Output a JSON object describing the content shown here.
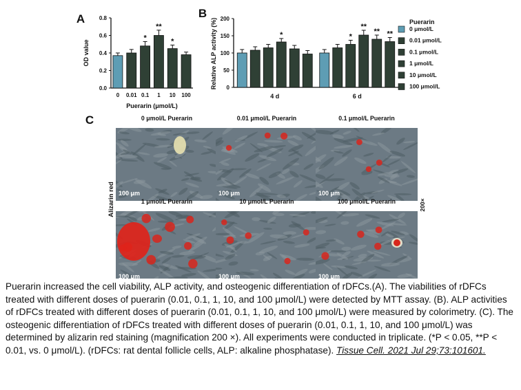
{
  "panels": {
    "a": {
      "letter": "A",
      "chart_data": {
        "type": "bar",
        "categories": [
          "0",
          "0.01",
          "0.1",
          "1",
          "10",
          "100"
        ],
        "values": [
          0.37,
          0.4,
          0.48,
          0.6,
          0.45,
          0.38
        ],
        "errors": [
          0.03,
          0.04,
          0.05,
          0.06,
          0.04,
          0.03
        ],
        "significance": [
          "",
          "",
          "*",
          "**",
          "*",
          ""
        ],
        "xlabel": "Puerarin (μmol/L)",
        "ylabel": "OD value",
        "ylim": [
          0,
          0.8
        ],
        "yticks": [
          "0.0",
          "0.2",
          "0.4",
          "0.6",
          "0.8"
        ],
        "colors": [
          "#5e9db4",
          "#2f4035",
          "#2f4035",
          "#2f4035",
          "#2f4035",
          "#2f4035"
        ]
      }
    },
    "b": {
      "letter": "B",
      "chart_data": {
        "type": "bar",
        "groups": [
          "4 d",
          "6 d"
        ],
        "series": [
          {
            "name": "0 μmol/L",
            "values": [
              100,
              100
            ],
            "errors": [
              10,
              10
            ],
            "sig": [
              "",
              ""
            ]
          },
          {
            "name": "0.01 μmol/L",
            "values": [
              108,
              115
            ],
            "errors": [
              10,
              10
            ],
            "sig": [
              "",
              ""
            ]
          },
          {
            "name": "0.1 μmol/L",
            "values": [
              115,
              125
            ],
            "errors": [
              10,
              12
            ],
            "sig": [
              "",
              "*"
            ]
          },
          {
            "name": "1 μmol/L",
            "values": [
              132,
              152
            ],
            "errors": [
              10,
              14
            ],
            "sig": [
              "*",
              "**"
            ]
          },
          {
            "name": "10 μmol/L",
            "values": [
              112,
              140
            ],
            "errors": [
              10,
              12
            ],
            "sig": [
              "",
              "**"
            ]
          },
          {
            "name": "100 μmol/L",
            "values": [
              97,
              133
            ],
            "errors": [
              10,
              12
            ],
            "sig": [
              "",
              "**"
            ]
          }
        ],
        "ylabel": "Relative ALP activity (%)",
        "ylim": [
          0,
          200
        ],
        "yticks": [
          "0",
          "50",
          "100",
          "150",
          "200"
        ],
        "legend_title": "Puerarin",
        "legend_position": "right",
        "colors": [
          "#5e9db4",
          "#2f4035",
          "#2f4035",
          "#2f4035",
          "#2f4035",
          "#2f4035"
        ]
      }
    },
    "c": {
      "letter": "C",
      "row_label": "Alizarin red",
      "magnification": "200×",
      "scale_bar": "100 μm",
      "images": [
        {
          "title": "0 μmol/L Puerarin",
          "red_level": 0.05
        },
        {
          "title": "0.01 μmol/L Puerarin",
          "red_level": 0.3
        },
        {
          "title": "0.1 μmol/L Puerarin",
          "red_level": 0.35
        },
        {
          "title": "1 μmol/L Puerarin",
          "red_level": 0.9
        },
        {
          "title": "10 μmol/L Puerarin",
          "red_level": 0.6
        },
        {
          "title": "100 μmol/L Puerarin",
          "red_level": 0.45
        }
      ]
    }
  },
  "caption": {
    "text": "Puerarin increased the cell viability, ALP activity, and osteogenic differentiation of rDFCs.(A). The viabilities of rDFCs treated with different doses of puerarin (0.01, 0.1, 1, 10, and 100 μmol/L) were detected by MTT assay. (B). ALP activities of rDFCs treated with different doses of puerarin (0.01, 0.1, 1, 10, and 100 μmol/L) were measured by colorimetry. (C). The osteogenic differentiation of rDFCs treated with different doses of puerarin (0.01, 0.1, 1, 10, and 100 μmol/L) was determined by alizarin red staining (magnification 200 ×). All experiments were conducted in triplicate. (*P < 0.05, **P < 0.01, vs. 0 μmol/L). (rDFCs: rat dental follicle cells, ALP: alkaline phosphatase).",
    "citation": "Tissue Cell. 2021 Jul 29;73:101601."
  }
}
